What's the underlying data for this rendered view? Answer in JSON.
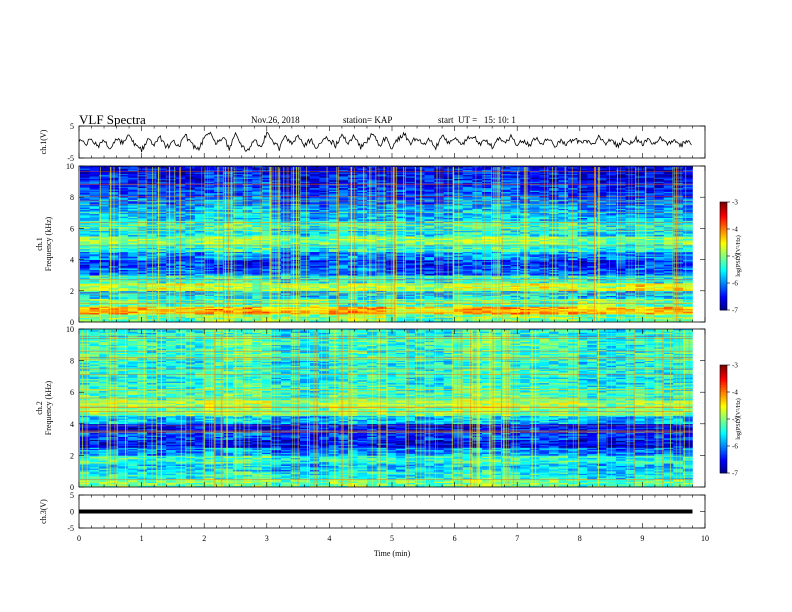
{
  "header": {
    "title": "VLF Spectra",
    "date": "Nov.26, 2018",
    "station": "station= KAP",
    "start": "start  UT =   15: 10: 1"
  },
  "chart_data": [
    {
      "type": "line",
      "title": "",
      "ylabel": "ch.1(V)",
      "ylim": [
        -5,
        5
      ],
      "yticks": [
        "5",
        "-5"
      ],
      "x": [
        0.0,
        0.1,
        0.2,
        0.3,
        0.4,
        0.5,
        0.6,
        0.7,
        0.8,
        0.9,
        1.0,
        1.1,
        1.2,
        1.3,
        1.4,
        1.5,
        1.6,
        1.7,
        1.8,
        1.9,
        2.0,
        2.1,
        2.2,
        2.3,
        2.4,
        2.5,
        2.6,
        2.7,
        2.8,
        2.9,
        3.0,
        3.1,
        3.2,
        3.3,
        3.4,
        3.5,
        3.6,
        3.7,
        3.8,
        3.9,
        4.0,
        4.1,
        4.2,
        4.3,
        4.4,
        4.5,
        4.6,
        4.7,
        4.8,
        4.9,
        5.0,
        5.1,
        5.2,
        5.3,
        5.4,
        5.5,
        5.6,
        5.7,
        5.8,
        5.9,
        6.0,
        6.1,
        6.2,
        6.3,
        6.4,
        6.5,
        6.6,
        6.7,
        6.8,
        6.9,
        7.0,
        7.1,
        7.2,
        7.3,
        7.4,
        7.5,
        7.6,
        7.7,
        7.8,
        7.9,
        8.0,
        8.1,
        8.2,
        8.3,
        8.4,
        8.5,
        8.6,
        8.7,
        8.8,
        8.9,
        9.0,
        9.1,
        9.2,
        9.3,
        9.4,
        9.5,
        9.6,
        9.7,
        9.8
      ],
      "values": [
        0.5,
        -0.8,
        1.2,
        -1.5,
        0.3,
        -2.2,
        0.9,
        -0.4,
        1.8,
        -1.1,
        -2.6,
        0.6,
        -0.9,
        1.4,
        -1.8,
        0.2,
        -1.3,
        2.0,
        -0.7,
        -2.4,
        1.1,
        2.3,
        -0.5,
        1.6,
        -1.9,
        2.4,
        -0.8,
        -2.9,
        1.3,
        -1.6,
        2.5,
        0.4,
        -2.1,
        1.7,
        -0.6,
        2.1,
        -1.4,
        0.8,
        -2.5,
        1.5,
        0.7,
        -1.2,
        2.2,
        -0.3,
        1.9,
        -1.7,
        0.5,
        2.6,
        -0.9,
        1.2,
        -2.0,
        1.0,
        2.4,
        -0.6,
        1.6,
        -1.3,
        0.9,
        -1.8,
        2.2,
        -0.4,
        1.4,
        -1.1,
        0.8,
        1.9,
        -0.9,
        0.7,
        -1.5,
        1.1,
        -0.2,
        1.6,
        -0.8,
        0.4,
        -1.0,
        1.2,
        -0.5,
        0.9,
        -1.3,
        0.6,
        -0.7,
        1.0,
        -0.3,
        0.8,
        -1.1,
        1.4,
        -0.6,
        0.5,
        -1.2,
        0.9,
        -0.4,
        1.1,
        -0.8,
        0.6,
        -1.0,
        1.3,
        -0.5,
        0.7,
        -1.4,
        0.3,
        -0.9
      ],
      "color": "#000000"
    },
    {
      "type": "heatmap",
      "title": "",
      "ylabel": "ch.1\nFrequency (kHz)",
      "ylim": [
        0,
        10
      ],
      "yticks": [
        "0",
        "2",
        "4",
        "6",
        "8",
        "10"
      ],
      "colorbar": {
        "label": "log(PSD)(V²/Hz)",
        "range": [
          -7,
          -3
        ],
        "ticks": [
          "-3",
          "-4",
          "-5",
          "-6",
          "-7"
        ]
      },
      "rows_freq_khz": [
        0.0,
        0.5,
        1.0,
        1.5,
        2.0,
        2.5,
        3.0,
        3.5,
        4.0,
        4.5,
        5.0,
        5.5,
        6.0,
        6.5,
        7.0,
        7.5,
        8.0,
        8.5,
        9.0,
        9.5
      ],
      "values": [
        [
          -5.0,
          -5.2,
          -4.9,
          -5.1,
          -4.8,
          -5.3,
          -5.0,
          -4.9,
          -5.2,
          -5.1
        ],
        [
          -4.2,
          -4.4,
          -4.1,
          -4.3,
          -4.0,
          -4.5,
          -4.2,
          -4.1,
          -4.4,
          -4.3
        ],
        [
          -5.1,
          -5.3,
          -5.2,
          -5.0,
          -5.4,
          -5.2,
          -5.1,
          -5.3,
          -5.0,
          -5.2
        ],
        [
          -5.6,
          -5.7,
          -5.5,
          -5.8,
          -5.6,
          -5.7,
          -5.5,
          -5.6,
          -5.8,
          -5.7
        ],
        [
          -4.8,
          -4.6,
          -4.9,
          -4.7,
          -4.8,
          -4.9,
          -4.7,
          -4.6,
          -4.8,
          -4.4
        ],
        [
          -5.4,
          -5.5,
          -5.3,
          -5.6,
          -5.4,
          -5.5,
          -5.3,
          -5.4,
          -5.6,
          -5.5
        ],
        [
          -6.1,
          -6.0,
          -6.2,
          -6.1,
          -6.0,
          -6.3,
          -6.1,
          -6.0,
          -6.2,
          -6.1
        ],
        [
          -6.3,
          -6.2,
          -6.4,
          -6.3,
          -6.1,
          -6.4,
          -6.2,
          -6.3,
          -6.4,
          -6.2
        ],
        [
          -5.9,
          -6.0,
          -5.8,
          -6.1,
          -5.9,
          -6.0,
          -5.8,
          -5.9,
          -6.1,
          -6.0
        ],
        [
          -5.3,
          -5.4,
          -5.2,
          -5.5,
          -5.3,
          -5.4,
          -5.2,
          -5.3,
          -5.5,
          -5.4
        ],
        [
          -4.9,
          -5.0,
          -4.8,
          -5.1,
          -4.9,
          -5.0,
          -4.8,
          -4.9,
          -5.1,
          -5.0
        ],
        [
          -5.5,
          -5.6,
          -5.4,
          -5.7,
          -5.5,
          -5.6,
          -5.4,
          -5.5,
          -5.7,
          -5.6
        ],
        [
          -5.3,
          -5.4,
          -5.2,
          -5.5,
          -5.3,
          -5.4,
          -5.2,
          -5.3,
          -5.5,
          -5.4
        ],
        [
          -5.7,
          -5.8,
          -5.6,
          -5.9,
          -5.7,
          -5.8,
          -5.6,
          -5.7,
          -5.9,
          -5.8
        ],
        [
          -5.8,
          -5.9,
          -5.7,
          -6.0,
          -5.8,
          -5.9,
          -5.7,
          -5.8,
          -6.0,
          -5.9
        ],
        [
          -6.0,
          -6.1,
          -5.9,
          -6.2,
          -6.0,
          -6.1,
          -5.9,
          -6.0,
          -6.2,
          -6.1
        ],
        [
          -6.2,
          -6.3,
          -6.1,
          -6.4,
          -6.2,
          -6.3,
          -6.1,
          -6.2,
          -6.4,
          -6.3
        ],
        [
          -6.3,
          -6.4,
          -6.2,
          -6.5,
          -6.3,
          -6.4,
          -6.2,
          -6.3,
          -6.5,
          -6.4
        ],
        [
          -6.4,
          -6.5,
          -6.3,
          -6.6,
          -6.4,
          -6.5,
          -6.3,
          -6.4,
          -6.6,
          -6.5
        ],
        [
          -6.5,
          -6.6,
          -6.4,
          -6.7,
          -6.5,
          -6.6,
          -6.4,
          -6.5,
          -6.7,
          -6.6
        ]
      ]
    },
    {
      "type": "heatmap",
      "title": "",
      "ylabel": "ch.2\nFrequency (kHz)",
      "ylim": [
        0,
        10
      ],
      "yticks": [
        "0",
        "2",
        "4",
        "6",
        "8",
        "10"
      ],
      "colorbar": {
        "label": "log(PSD)(V²/Hz)",
        "range": [
          -7,
          -3
        ],
        "ticks": [
          "-3",
          "-4",
          "-5",
          "-6",
          "-7"
        ]
      },
      "rows_freq_khz": [
        0.0,
        0.5,
        1.0,
        1.5,
        2.0,
        2.5,
        3.0,
        3.5,
        4.0,
        4.5,
        5.0,
        5.5,
        6.0,
        6.5,
        7.0,
        7.5,
        8.0,
        8.5,
        9.0,
        9.5
      ],
      "values": [
        [
          -5.0,
          -5.1,
          -4.9,
          -5.2,
          -5.0,
          -5.1,
          -4.9,
          -5.0,
          -5.2,
          -5.1
        ],
        [
          -5.4,
          -5.5,
          -5.3,
          -5.6,
          -5.4,
          -5.5,
          -5.3,
          -5.4,
          -5.6,
          -5.5
        ],
        [
          -5.6,
          -5.7,
          -5.5,
          -5.8,
          -5.6,
          -5.7,
          -5.5,
          -5.6,
          -5.8,
          -5.7
        ],
        [
          -5.3,
          -5.4,
          -5.2,
          -5.5,
          -5.3,
          -5.4,
          -5.2,
          -5.3,
          -5.5,
          -5.4
        ],
        [
          -5.9,
          -6.0,
          -5.8,
          -6.1,
          -5.9,
          -6.0,
          -5.8,
          -5.9,
          -6.1,
          -6.0
        ],
        [
          -6.5,
          -6.4,
          -6.6,
          -6.5,
          -6.4,
          -6.6,
          -6.5,
          -6.4,
          -6.6,
          -6.5
        ],
        [
          -6.2,
          -6.3,
          -6.1,
          -6.4,
          -6.2,
          -6.3,
          -6.1,
          -6.2,
          -6.4,
          -6.3
        ],
        [
          -6.6,
          -6.5,
          -6.6,
          -6.4,
          -6.5,
          -6.6,
          -6.5,
          -6.4,
          -6.6,
          -6.5
        ],
        [
          -5.7,
          -5.8,
          -5.6,
          -5.9,
          -5.7,
          -5.8,
          -5.6,
          -5.7,
          -5.9,
          -5.8
        ],
        [
          -5.0,
          -5.1,
          -4.9,
          -5.2,
          -5.0,
          -5.1,
          -4.9,
          -5.0,
          -5.2,
          -5.1
        ],
        [
          -4.8,
          -4.9,
          -4.7,
          -5.0,
          -4.8,
          -4.9,
          -4.7,
          -4.8,
          -5.0,
          -4.9
        ],
        [
          -5.2,
          -5.3,
          -5.1,
          -5.4,
          -5.2,
          -5.3,
          -5.1,
          -5.2,
          -5.4,
          -5.3
        ],
        [
          -5.3,
          -5.4,
          -5.2,
          -5.5,
          -5.3,
          -5.4,
          -5.2,
          -5.3,
          -5.5,
          -5.4
        ],
        [
          -5.4,
          -5.5,
          -5.3,
          -5.6,
          -5.4,
          -5.5,
          -5.3,
          -5.4,
          -5.6,
          -5.5
        ],
        [
          -5.3,
          -5.4,
          -5.2,
          -5.5,
          -5.3,
          -5.4,
          -5.2,
          -5.3,
          -5.5,
          -5.4
        ],
        [
          -5.4,
          -5.5,
          -5.3,
          -5.6,
          -5.4,
          -5.5,
          -5.3,
          -5.4,
          -5.6,
          -5.5
        ],
        [
          -5.2,
          -5.3,
          -5.1,
          -5.4,
          -5.2,
          -5.3,
          -5.1,
          -5.2,
          -5.4,
          -5.3
        ],
        [
          -5.3,
          -5.4,
          -5.2,
          -5.5,
          -5.3,
          -5.4,
          -5.2,
          -5.3,
          -5.5,
          -5.4
        ],
        [
          -5.2,
          -5.3,
          -5.1,
          -5.4,
          -5.2,
          -5.3,
          -5.1,
          -5.2,
          -5.4,
          -5.3
        ],
        [
          -5.4,
          -5.5,
          -5.3,
          -5.6,
          -5.4,
          -5.5,
          -5.3,
          -5.4,
          -5.6,
          -5.5
        ]
      ]
    },
    {
      "type": "line",
      "title": "",
      "ylabel": "ch.3(V)",
      "ylim": [
        -5,
        5
      ],
      "yticks": [
        "5",
        "0",
        "-5"
      ],
      "x": [
        0,
        9.8
      ],
      "values": [
        0,
        0
      ],
      "color": "#000000",
      "xlabel": "Time  (min)",
      "xlim": [
        0,
        10
      ],
      "xticks": [
        "0",
        "1",
        "2",
        "3",
        "4",
        "5",
        "6",
        "7",
        "8",
        "9",
        "10"
      ]
    }
  ]
}
